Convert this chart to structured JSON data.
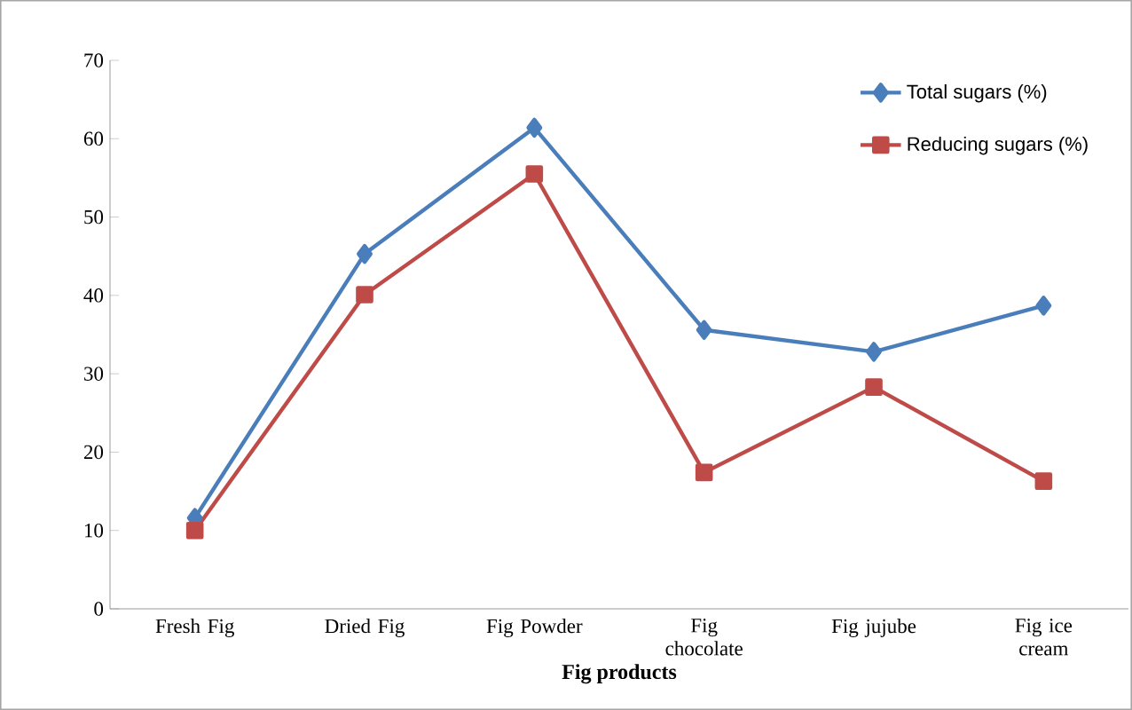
{
  "chart_data": {
    "type": "line",
    "xlabel": "Fig  products",
    "categories": [
      "Fresh Fig",
      "Dried Fig",
      "Fig Powder",
      "Fig chocolate",
      "Fig jujube",
      "Fig ice cream"
    ],
    "series": [
      {
        "name": "Total sugars (%)",
        "color": "#4a7ebb",
        "marker": "diamond",
        "values": [
          11.6,
          45.3,
          61.4,
          35.6,
          32.8,
          38.7
        ]
      },
      {
        "name": "Reducing sugars (%)",
        "color": "#be4b48",
        "marker": "square",
        "values": [
          10.0,
          40.1,
          55.5,
          17.4,
          28.3,
          16.3
        ]
      }
    ],
    "ylim": [
      0,
      70
    ],
    "yticks": [
      0,
      10,
      20,
      30,
      40,
      50,
      60,
      70
    ],
    "legend": "top right",
    "grid": false
  }
}
